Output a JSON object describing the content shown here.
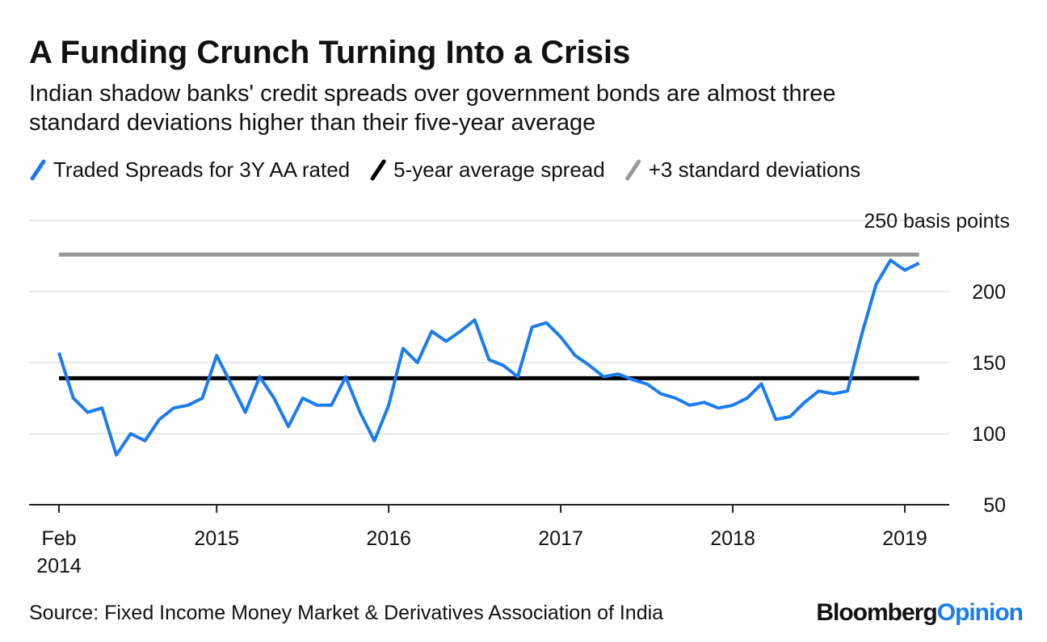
{
  "chart_data": {
    "type": "line",
    "title": "A Funding Crunch Turning Into a Crisis",
    "subtitle": "Indian shadow banks' credit spreads over government bonds are almost three standard deviations higher than their five-year average",
    "source": "Source: Fixed Income Money Market & Derivatives Association of India",
    "logo": [
      "Bloomberg",
      "Opinion"
    ],
    "x": [
      "2014-02",
      "2014-03",
      "2014-04",
      "2014-05",
      "2014-06",
      "2014-07",
      "2014-08",
      "2014-09",
      "2014-10",
      "2014-11",
      "2014-12",
      "2015-01",
      "2015-02",
      "2015-03",
      "2015-04",
      "2015-05",
      "2015-06",
      "2015-07",
      "2015-08",
      "2015-09",
      "2015-10",
      "2015-11",
      "2015-12",
      "2016-01",
      "2016-02",
      "2016-03",
      "2016-04",
      "2016-05",
      "2016-06",
      "2016-07",
      "2016-08",
      "2016-09",
      "2016-10",
      "2016-11",
      "2016-12",
      "2017-01",
      "2017-02",
      "2017-03",
      "2017-04",
      "2017-05",
      "2017-06",
      "2017-07",
      "2017-08",
      "2017-09",
      "2017-10",
      "2017-11",
      "2017-12",
      "2018-01",
      "2018-02",
      "2018-03",
      "2018-04",
      "2018-05",
      "2018-06",
      "2018-07",
      "2018-08",
      "2018-09",
      "2018-10",
      "2018-11",
      "2018-12",
      "2019-01",
      "2019-02"
    ],
    "series": [
      {
        "name": "Traded Spreads for 3Y AA rated",
        "color": "#1a7cf2",
        "values": [
          157,
          125,
          115,
          118,
          85,
          100,
          95,
          110,
          118,
          120,
          125,
          155,
          135,
          115,
          140,
          125,
          105,
          125,
          120,
          120,
          140,
          115,
          95,
          120,
          160,
          150,
          172,
          165,
          172,
          180,
          152,
          148,
          140,
          175,
          178,
          168,
          155,
          148,
          140,
          142,
          138,
          135,
          128,
          125,
          120,
          122,
          118,
          120,
          125,
          135,
          110,
          112,
          122,
          130,
          128,
          130,
          170,
          205,
          222,
          215,
          220
        ]
      }
    ],
    "reference_lines": [
      {
        "name": "5-year average spread",
        "color": "#000000",
        "value": 139
      },
      {
        "name": "+3 standard deviations",
        "color": "#999999",
        "value": 226
      }
    ],
    "xticks": [
      {
        "value": "2014-02",
        "label": "Feb 2014"
      },
      {
        "value": "2015-01",
        "label": "2015"
      },
      {
        "value": "2016-01",
        "label": "2016"
      },
      {
        "value": "2017-01",
        "label": "2017"
      },
      {
        "value": "2018-01",
        "label": "2018"
      },
      {
        "value": "2019-01",
        "label": "2019"
      }
    ],
    "ylim": [
      50,
      250
    ],
    "yticks": [
      50,
      100,
      150,
      200,
      {
        "value": 250,
        "label": "250 basis points"
      }
    ],
    "grid": true
  }
}
